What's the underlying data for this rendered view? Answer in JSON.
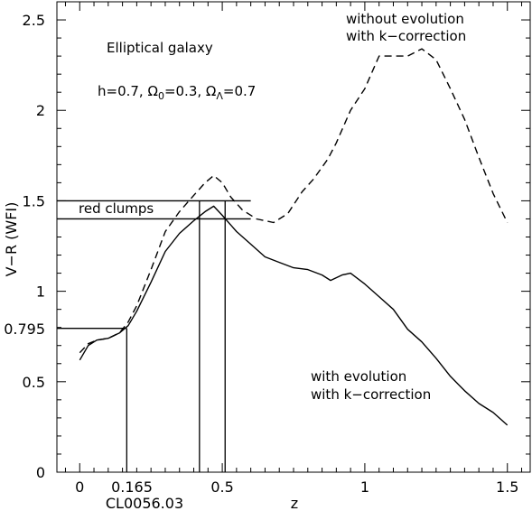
{
  "chart_data": {
    "type": "line",
    "xlabel": "z",
    "ylabel": "V−R (WFI)",
    "xlim": [
      -0.08,
      1.58
    ],
    "ylim": [
      0,
      2.6
    ],
    "x_ticks": [
      0,
      0.5,
      1,
      1.5
    ],
    "x_tick_labels": [
      "0",
      "0.5",
      "1",
      "1.5"
    ],
    "y_ticks": [
      0,
      0.5,
      1,
      1.5,
      2,
      2.5
    ],
    "y_tick_labels": [
      "0",
      "0.5",
      "1",
      "1.5",
      "2",
      "2.5"
    ],
    "series": [
      {
        "name": "without evolution with k−correction",
        "style": "dashed",
        "x": [
          0.0,
          0.03,
          0.06,
          0.1,
          0.14,
          0.17,
          0.2,
          0.25,
          0.3,
          0.35,
          0.4,
          0.44,
          0.47,
          0.5,
          0.53,
          0.57,
          0.62,
          0.68,
          0.73,
          0.78,
          0.82,
          0.87,
          0.9,
          0.95,
          1.0,
          1.05,
          1.1,
          1.15,
          1.2,
          1.25,
          1.3,
          1.35,
          1.4,
          1.45,
          1.5
        ],
        "y": [
          0.66,
          0.71,
          0.73,
          0.74,
          0.77,
          0.83,
          0.92,
          1.12,
          1.33,
          1.44,
          1.53,
          1.6,
          1.64,
          1.6,
          1.52,
          1.45,
          1.4,
          1.38,
          1.43,
          1.55,
          1.62,
          1.73,
          1.82,
          2.0,
          2.12,
          2.3,
          2.3,
          2.3,
          2.34,
          2.28,
          2.12,
          1.95,
          1.74,
          1.54,
          1.38
        ]
      },
      {
        "name": "with evolution with k−correction",
        "style": "solid",
        "x": [
          0.0,
          0.03,
          0.06,
          0.1,
          0.14,
          0.17,
          0.2,
          0.25,
          0.3,
          0.35,
          0.4,
          0.44,
          0.47,
          0.5,
          0.55,
          0.6,
          0.65,
          0.7,
          0.75,
          0.8,
          0.85,
          0.88,
          0.92,
          0.95,
          1.0,
          1.05,
          1.1,
          1.15,
          1.2,
          1.25,
          1.3,
          1.35,
          1.4,
          1.45,
          1.5
        ],
        "y": [
          0.62,
          0.7,
          0.73,
          0.74,
          0.77,
          0.81,
          0.89,
          1.05,
          1.22,
          1.32,
          1.39,
          1.44,
          1.47,
          1.42,
          1.33,
          1.26,
          1.19,
          1.16,
          1.13,
          1.12,
          1.09,
          1.06,
          1.09,
          1.1,
          1.04,
          0.97,
          0.9,
          0.79,
          0.72,
          0.63,
          0.53,
          0.45,
          0.38,
          0.33,
          0.26
        ]
      }
    ],
    "reference_lines": {
      "horizontal": [
        {
          "y": 1.5,
          "x_from": -0.08,
          "x_to": 0.6
        },
        {
          "y": 1.4,
          "x_from": -0.08,
          "x_to": 0.6
        },
        {
          "y": 0.795,
          "x_from": -0.08,
          "x_to": 0.165
        }
      ],
      "vertical": [
        {
          "x": 0.165,
          "y_from": 0,
          "y_to": 0.795
        },
        {
          "x": 0.42,
          "y_from": 0,
          "y_to": 1.5
        },
        {
          "x": 0.51,
          "y_from": 0,
          "y_to": 1.5
        }
      ]
    },
    "extra_tick_labels": {
      "y_0795": "0.795",
      "x_0165": "0.165",
      "cluster": "CL0056.03"
    },
    "annotations": {
      "galaxy_type": "Elliptical galaxy",
      "red_clumps": "red clumps",
      "no_evo_line1": "without evolution",
      "no_evo_line2": "with k−correction",
      "evo_line1": "with evolution",
      "evo_line2": "with k−correction"
    }
  }
}
